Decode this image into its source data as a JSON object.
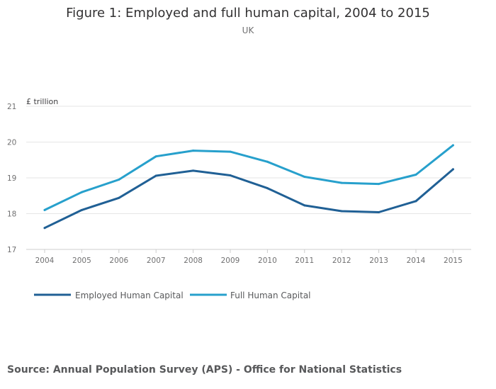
{
  "chart_data": {
    "type": "line",
    "title": "Figure 1: Employed and full human capital, 2004 to 2015",
    "subtitle": "UK",
    "ylabel": "£ trillion",
    "xlabel": "",
    "ylim": [
      17,
      21
    ],
    "yticks": [
      "17",
      "18",
      "19",
      "20",
      "21"
    ],
    "categories": [
      "2004",
      "2005",
      "2006",
      "2007",
      "2008",
      "2009",
      "2010",
      "2011",
      "2012",
      "2013",
      "2014",
      "2015"
    ],
    "series": [
      {
        "name": "Employed Human Capital",
        "color": "#206095",
        "values": [
          17.6,
          18.1,
          18.44,
          19.06,
          19.2,
          19.07,
          18.71,
          18.23,
          18.07,
          18.04,
          18.35,
          19.24
        ]
      },
      {
        "name": "Full Human Capital",
        "color": "#27a0cc",
        "values": [
          18.1,
          18.6,
          18.95,
          19.6,
          19.76,
          19.73,
          19.45,
          19.03,
          18.86,
          18.83,
          19.09,
          19.91
        ]
      }
    ],
    "legend_position": "bottom-left",
    "grid": true
  },
  "source": "Source: Annual Population Survey (APS) - Office for National Statistics"
}
